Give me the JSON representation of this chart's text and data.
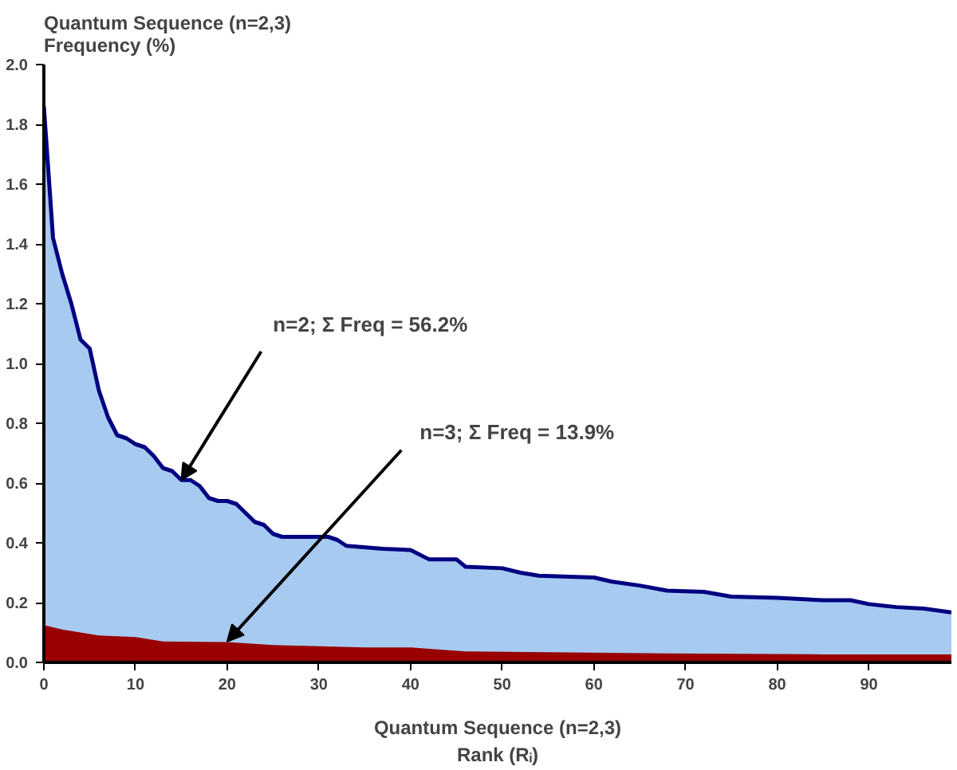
{
  "chart_data": {
    "type": "area",
    "xlabel": "Quantum Sequence (n=2,3)\nRank (Rᵢ)",
    "ylabel": "Quantum Sequence (n=2,3)\nFrequency (%)",
    "xlim": [
      0,
      99
    ],
    "xticks": [
      0,
      10,
      20,
      30,
      40,
      50,
      60,
      70,
      80,
      90
    ],
    "ylim": [
      0,
      2
    ],
    "yticks": [
      {
        "value": 0,
        "label": "0.0"
      },
      {
        "value": 0.2,
        "label": "0.2"
      },
      {
        "value": 0.4,
        "label": "0.4"
      },
      {
        "value": 0.6,
        "label": "0.6"
      },
      {
        "value": 0.8,
        "label": "0.8"
      },
      {
        "value": 1,
        "label": "1.0"
      },
      {
        "value": 1.2,
        "label": "1.2"
      },
      {
        "value": 1.4,
        "label": "1.4"
      },
      {
        "value": 1.6,
        "label": "1.6"
      },
      {
        "value": 1.8,
        "label": "1.8"
      },
      {
        "value": 2,
        "label": "2.0"
      }
    ],
    "grid": false,
    "series": [
      {
        "color": "#a6caf0",
        "x": [
          0,
          1,
          2,
          3,
          4,
          5,
          6,
          7,
          8,
          9,
          10,
          11,
          12,
          13,
          14,
          15,
          16,
          17,
          18,
          19,
          20,
          21,
          22,
          23,
          24,
          25,
          26,
          31,
          32,
          33,
          37,
          40,
          42,
          45,
          46,
          50,
          52,
          54,
          60,
          62,
          65,
          68,
          72,
          75,
          80,
          85,
          88,
          90,
          93,
          96,
          99
        ],
        "values": [
          1.86,
          1.42,
          1.3,
          1.2,
          1.08,
          1.05,
          0.91,
          0.82,
          0.76,
          0.75,
          0.73,
          0.72,
          0.69,
          0.65,
          0.64,
          0.61,
          0.61,
          0.59,
          0.55,
          0.54,
          0.54,
          0.53,
          0.5,
          0.47,
          0.46,
          0.43,
          0.42,
          0.42,
          0.41,
          0.39,
          0.38,
          0.376,
          0.345,
          0.345,
          0.32,
          0.315,
          0.3,
          0.29,
          0.284,
          0.27,
          0.257,
          0.24,
          0.236,
          0.22,
          0.216,
          0.208,
          0.208,
          0.195,
          0.185,
          0.18,
          0.167
        ]
      },
      {
        "color": "#990000",
        "x": [
          0,
          2,
          4,
          6,
          10,
          13,
          20,
          25,
          35,
          40,
          46,
          68,
          85,
          99
        ],
        "values": [
          0.125,
          0.11,
          0.1,
          0.09,
          0.085,
          0.07,
          0.068,
          0.058,
          0.05,
          0.05,
          0.037,
          0.03,
          0.027,
          0.027
        ]
      }
    ],
    "annotations": [
      {
        "text": "n=2; Σ Freq = 56.2%",
        "x": 15,
        "y": 0.61
      },
      {
        "text": "n=3; Σ Freq = 13.9%",
        "x": 20,
        "y": 0.07
      }
    ]
  }
}
